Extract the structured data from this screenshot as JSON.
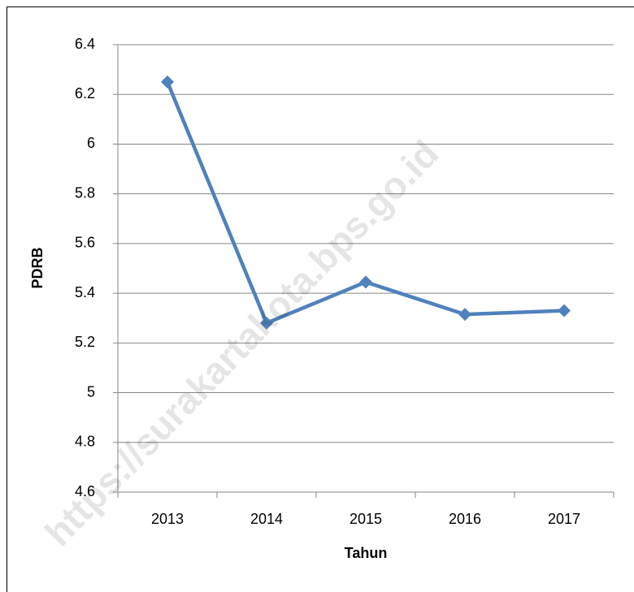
{
  "chart_data": {
    "type": "line",
    "categories": [
      "2013",
      "2014",
      "2015",
      "2016",
      "2017"
    ],
    "series": [
      {
        "name": "PDRB",
        "color": "#4f81bd",
        "values": [
          6.25,
          5.28,
          5.445,
          5.315,
          5.33
        ]
      }
    ],
    "ylim": [
      4.6,
      6.4
    ],
    "yticks": [
      4.6,
      4.8,
      5,
      5.2,
      5.4,
      5.6,
      5.8,
      6,
      6.2,
      6.4
    ],
    "grid": true,
    "xlabel": "Tahun",
    "ylabel": "PDRB",
    "watermark": "https://surakartakota.bps.go.id"
  }
}
